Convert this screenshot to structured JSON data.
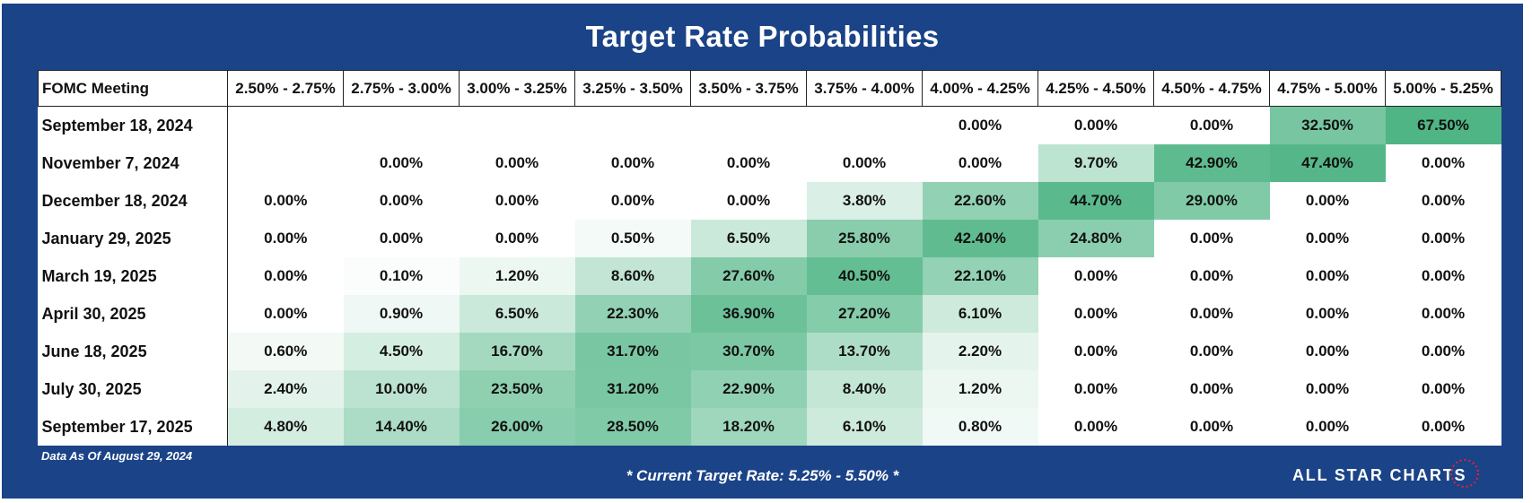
{
  "title": "Target Rate Probabilities",
  "data_as_of": "Data As Of August 29, 2024",
  "current_target": "* Current Target Rate: 5.25% - 5.50% *",
  "brand": "ALL STAR CHARTS",
  "colors": {
    "background": "#1b4387",
    "heat_low": "#ffffff",
    "heat_high": "#4fb585"
  },
  "chart_data": {
    "type": "heatmap",
    "title": "Target Rate Probabilities",
    "row_header": "FOMC Meeting",
    "columns": [
      "2.50% - 2.75%",
      "2.75% - 3.00%",
      "3.00% - 3.25%",
      "3.25% - 3.50%",
      "3.50% - 3.75%",
      "3.75% - 4.00%",
      "4.00% - 4.25%",
      "4.25% - 4.50%",
      "4.50% - 4.75%",
      "4.75% - 5.00%",
      "5.00% - 5.25%"
    ],
    "rows": [
      {
        "meeting": "September 18, 2024",
        "values": [
          null,
          null,
          null,
          null,
          null,
          null,
          "0.00%",
          "0.00%",
          "0.00%",
          "32.50%",
          "67.50%"
        ]
      },
      {
        "meeting": "November 7, 2024",
        "values": [
          null,
          "0.00%",
          "0.00%",
          "0.00%",
          "0.00%",
          "0.00%",
          "0.00%",
          "9.70%",
          "42.90%",
          "47.40%",
          "0.00%"
        ]
      },
      {
        "meeting": "December 18, 2024",
        "values": [
          "0.00%",
          "0.00%",
          "0.00%",
          "0.00%",
          "0.00%",
          "3.80%",
          "22.60%",
          "44.70%",
          "29.00%",
          "0.00%",
          "0.00%"
        ]
      },
      {
        "meeting": "January 29, 2025",
        "values": [
          "0.00%",
          "0.00%",
          "0.00%",
          "0.50%",
          "6.50%",
          "25.80%",
          "42.40%",
          "24.80%",
          "0.00%",
          "0.00%",
          "0.00%"
        ]
      },
      {
        "meeting": "March 19, 2025",
        "values": [
          "0.00%",
          "0.10%",
          "1.20%",
          "8.60%",
          "27.60%",
          "40.50%",
          "22.10%",
          "0.00%",
          "0.00%",
          "0.00%",
          "0.00%"
        ]
      },
      {
        "meeting": "April 30, 2025",
        "values": [
          "0.00%",
          "0.90%",
          "6.50%",
          "22.30%",
          "36.90%",
          "27.20%",
          "6.10%",
          "0.00%",
          "0.00%",
          "0.00%",
          "0.00%"
        ]
      },
      {
        "meeting": "June 18, 2025",
        "values": [
          "0.60%",
          "4.50%",
          "16.70%",
          "31.70%",
          "30.70%",
          "13.70%",
          "2.20%",
          "0.00%",
          "0.00%",
          "0.00%",
          "0.00%"
        ]
      },
      {
        "meeting": "July 30, 2025",
        "values": [
          "2.40%",
          "10.00%",
          "23.50%",
          "31.20%",
          "22.90%",
          "8.40%",
          "1.20%",
          "0.00%",
          "0.00%",
          "0.00%",
          "0.00%"
        ]
      },
      {
        "meeting": "September 17, 2025",
        "values": [
          "4.80%",
          "14.40%",
          "26.00%",
          "28.50%",
          "18.20%",
          "6.10%",
          "0.80%",
          "0.00%",
          "0.00%",
          "0.00%",
          "0.00%"
        ]
      }
    ]
  }
}
